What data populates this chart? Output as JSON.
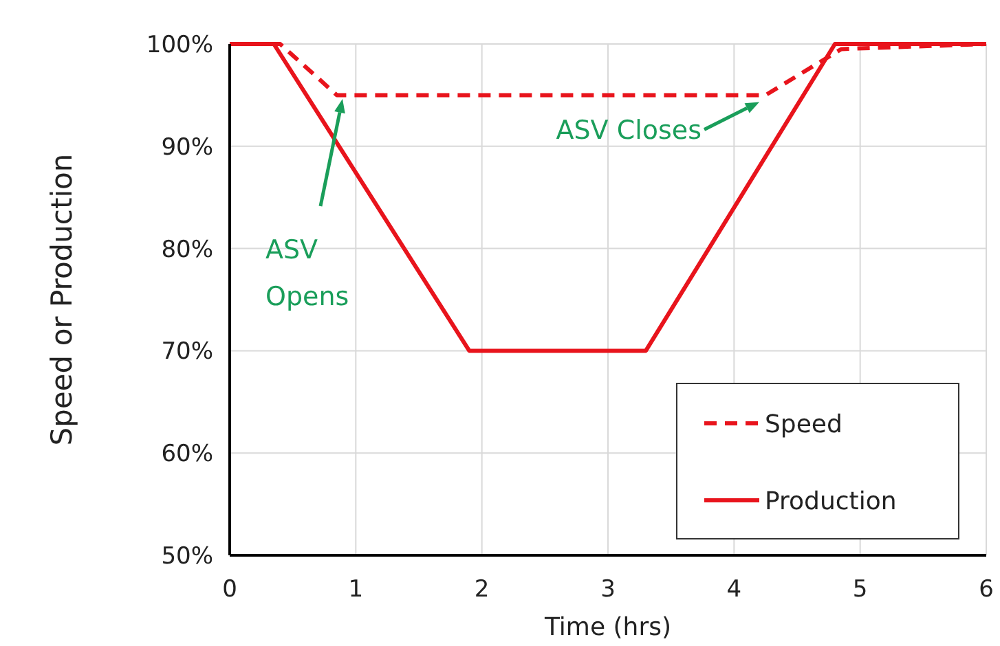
{
  "chart_data": {
    "type": "line",
    "xlabel": "Time (hrs)",
    "ylabel": "Speed or Production",
    "xlim": [
      0,
      6
    ],
    "xticks": [
      0,
      1,
      2,
      3,
      4,
      5,
      6
    ],
    "ylim": [
      50,
      100
    ],
    "yticks": [
      {
        "value": 50,
        "label": "50%"
      },
      {
        "value": 60,
        "label": "60%"
      },
      {
        "value": 70,
        "label": "70%"
      },
      {
        "value": 80,
        "label": "80%"
      },
      {
        "value": 90,
        "label": "90%"
      },
      {
        "value": 100,
        "label": "100%"
      }
    ],
    "grid": true,
    "legend": "bottom right",
    "series": [
      {
        "name": "Speed",
        "color": "#e8141c",
        "line_style": "dashed",
        "x": [
          0,
          0.4,
          0.85,
          4.25,
          4.85,
          6
        ],
        "values": [
          100,
          100,
          95,
          95,
          99.5,
          100
        ]
      },
      {
        "name": "Production",
        "color": "#e8141c",
        "line_style": "solid",
        "x": [
          0,
          0.35,
          1.9,
          3.3,
          4.8,
          6
        ],
        "values": [
          100,
          100,
          70,
          70,
          100,
          100
        ]
      }
    ],
    "annotations": [
      "ASV Opens",
      {
        "text": "ASV Closes",
        "x": 4.2,
        "y": 95
      }
    ]
  }
}
